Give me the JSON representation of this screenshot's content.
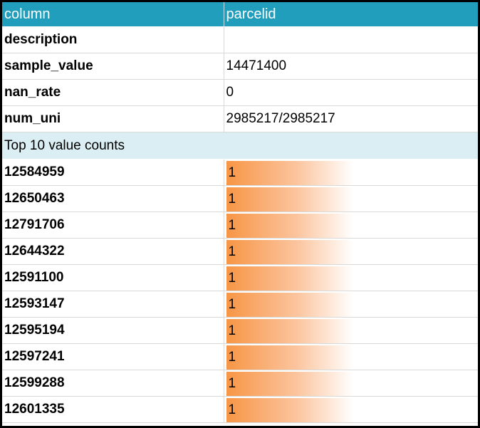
{
  "header": {
    "column_label": "column",
    "column_name": "parcelid"
  },
  "colors": {
    "header_bg": "#219ebc",
    "section_bg": "#daeef3",
    "bar": "#f79646"
  },
  "meta": [
    {
      "key": "description",
      "value": ""
    },
    {
      "key": "sample_value",
      "value": "14471400"
    },
    {
      "key": "nan_rate",
      "value": "0"
    },
    {
      "key": "num_uni",
      "value": "2985217/2985217"
    }
  ],
  "section_title": "Top 10 value counts",
  "value_counts": [
    {
      "value": "12584959",
      "count": "1",
      "fill": 1.0
    },
    {
      "value": "12650463",
      "count": "1",
      "fill": 1.0
    },
    {
      "value": "12791706",
      "count": "1",
      "fill": 1.0
    },
    {
      "value": "12644322",
      "count": "1",
      "fill": 1.0
    },
    {
      "value": "12591100",
      "count": "1",
      "fill": 1.0
    },
    {
      "value": "12593147",
      "count": "1",
      "fill": 1.0
    },
    {
      "value": "12595194",
      "count": "1",
      "fill": 1.0
    },
    {
      "value": "12597241",
      "count": "1",
      "fill": 1.0
    },
    {
      "value": "12599288",
      "count": "1",
      "fill": 1.0
    },
    {
      "value": "12601335",
      "count": "1",
      "fill": 1.0
    }
  ]
}
